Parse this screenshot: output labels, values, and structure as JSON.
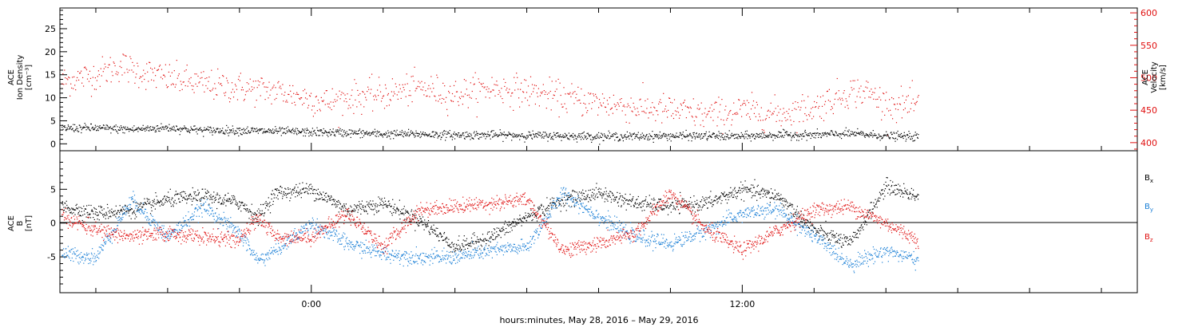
{
  "chart_data": [
    {
      "type": "scatter",
      "panel": "top",
      "ylabel_lines": [
        "ACE",
        "Ion Density",
        "[cm⁻³]"
      ],
      "ylabel2_lines": [
        "ACE",
        "Velocity",
        "[km/s]"
      ],
      "ylim": [
        -1.5,
        29.5
      ],
      "y2lim": [
        387.5,
        607.5
      ],
      "yticks": [
        0,
        5,
        10,
        15,
        20,
        25
      ],
      "y2ticks": [
        400,
        450,
        500,
        550,
        600
      ],
      "xlim": [
        -7.0,
        23.0
      ],
      "colors": {
        "density": "#000000",
        "velocity": "#e01010"
      },
      "series": [
        {
          "name": "Density",
          "axis": "left",
          "x": [
            -6.95,
            -6.0,
            -5.0,
            -4.0,
            -3.0,
            -2.0,
            -1.0,
            0.0,
            1.0,
            2.0,
            3.0,
            4.0,
            5.0,
            6.0,
            7.0,
            8.0,
            9.0,
            10.0,
            11.0,
            12.0,
            13.0,
            14.0,
            15.0,
            16.0,
            16.9
          ],
          "y": [
            3.5,
            3.5,
            3.2,
            3.6,
            3.0,
            3.0,
            2.8,
            2.6,
            2.5,
            2.2,
            2.2,
            2.0,
            2.0,
            1.9,
            1.8,
            1.7,
            1.7,
            1.8,
            1.8,
            1.7,
            2.0,
            2.0,
            2.3,
            1.8,
            1.6
          ]
        },
        {
          "name": "Velocity",
          "axis": "right",
          "x": [
            -6.95,
            -6.0,
            -5.3,
            -5.0,
            -4.0,
            -3.0,
            -2.0,
            -1.0,
            0.0,
            0.5,
            1.0,
            2.0,
            3.0,
            4.0,
            5.0,
            6.0,
            7.0,
            8.0,
            9.0,
            10.0,
            11.0,
            12.0,
            13.0,
            14.0,
            15.0,
            15.5,
            16.0,
            16.9
          ],
          "y": [
            495,
            505,
            520,
            512,
            500,
            490,
            485,
            480,
            468,
            462,
            470,
            475,
            485,
            475,
            485,
            480,
            470,
            462,
            455,
            450,
            443,
            450,
            445,
            455,
            480,
            478,
            460,
            458
          ]
        }
      ]
    },
    {
      "type": "scatter",
      "panel": "bottom",
      "ylabel_lines": [
        "ACE",
        "B",
        "[nT]"
      ],
      "ylim": [
        -10.3,
        10.7
      ],
      "yticks": [
        -5,
        0,
        5
      ],
      "xlim": [
        -7.0,
        23.0
      ],
      "xticks_major": [
        "0:00",
        "12:00"
      ],
      "xlabel": "hours:minutes, May 28, 2016 – May 29, 2016",
      "series": [
        {
          "name": "Bx",
          "color": "#000000",
          "x": [
            -6.95,
            -6.0,
            -5.0,
            -4.0,
            -3.0,
            -2.0,
            -1.5,
            -1.0,
            0.0,
            1.0,
            2.0,
            3.0,
            4.0,
            5.0,
            6.0,
            7.0,
            8.0,
            9.0,
            10.0,
            11.0,
            12.0,
            13.0,
            14.0,
            15.0,
            16.0,
            16.9
          ],
          "y": [
            2.5,
            1.5,
            2.0,
            3.5,
            4.0,
            3.0,
            1.0,
            4.5,
            5.0,
            2.0,
            3.0,
            0.5,
            -3.5,
            -2.0,
            1.0,
            3.5,
            4.5,
            3.0,
            2.5,
            3.0,
            5.0,
            4.0,
            -1.0,
            -3.0,
            5.5,
            4.0
          ]
        },
        {
          "name": "By",
          "color": "#1a7fd6",
          "x": [
            -6.95,
            -6.0,
            -5.0,
            -4.0,
            -3.0,
            -2.0,
            -1.5,
            -1.0,
            0.0,
            1.0,
            2.0,
            3.0,
            4.0,
            5.0,
            6.0,
            7.0,
            8.0,
            9.0,
            10.0,
            11.0,
            12.0,
            13.0,
            14.0,
            15.0,
            16.0,
            16.9
          ],
          "y": [
            -4.5,
            -5.0,
            3.5,
            -2.0,
            2.5,
            -1.5,
            -5.5,
            -4.0,
            0.0,
            -3.0,
            -4.5,
            -5.0,
            -5.0,
            -4.0,
            -3.5,
            4.5,
            1.0,
            -2.0,
            -3.0,
            -1.0,
            1.5,
            2.0,
            -2.0,
            -6.0,
            -4.0,
            -5.5
          ]
        },
        {
          "name": "Bz",
          "color": "#e01010",
          "x": [
            -6.95,
            -6.0,
            -5.0,
            -4.0,
            -3.0,
            -2.0,
            -1.5,
            -1.0,
            0.0,
            1.0,
            2.0,
            3.0,
            4.0,
            5.0,
            6.0,
            7.0,
            8.0,
            9.0,
            10.0,
            11.0,
            12.0,
            13.0,
            14.0,
            15.0,
            16.0,
            16.9
          ],
          "y": [
            1.0,
            -1.0,
            -2.0,
            -1.5,
            -2.0,
            -2.5,
            1.0,
            -2.0,
            -2.0,
            1.5,
            -3.5,
            2.0,
            2.5,
            3.0,
            3.5,
            -4.0,
            -3.0,
            -1.5,
            4.5,
            -1.0,
            -4.0,
            -1.0,
            2.0,
            2.5,
            0.0,
            -2.5
          ]
        }
      ],
      "legend": [
        {
          "text": "B",
          "sub": "x",
          "color": "#000000"
        },
        {
          "text": "B",
          "sub": "y",
          "color": "#1a7fd6"
        },
        {
          "text": "B",
          "sub": "z",
          "color": "#e01010"
        }
      ]
    }
  ]
}
